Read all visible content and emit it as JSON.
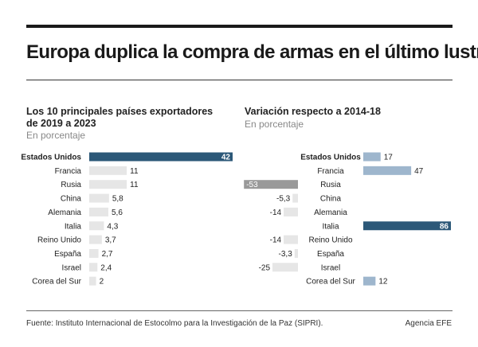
{
  "title": "Europa duplica la compra de armas en el último lustro",
  "left": {
    "subtitle_line1": "Los 10 principales países exportadores",
    "subtitle_line2": "de 2019 a 2023",
    "unit": "En porcentaje"
  },
  "right": {
    "subtitle": "Variación respecto a 2014-18",
    "unit": "En porcentaje"
  },
  "footer": {
    "source": "Fuente: Instituto Internacional de Estocolmo para la Investigación de la Paz (SIPRI).",
    "agency": "Agencia EFE"
  },
  "colors": {
    "highlight": "#2c5878",
    "light_bar": "#e6e6e6",
    "positive": "#9eb6cd",
    "negative_light": "#e6e6e6",
    "negative_dark": "#999999"
  },
  "chart_data": [
    {
      "type": "bar",
      "orientation": "horizontal",
      "categories": [
        "Estados Unidos",
        "Francia",
        "Rusia",
        "China",
        "Alemania",
        "Italia",
        "Reino Unido",
        "España",
        "Israel",
        "Corea del Sur"
      ],
      "values": [
        42,
        11,
        11,
        5.8,
        5.6,
        4.3,
        3.7,
        2.7,
        2.4,
        2
      ],
      "labels": [
        "42",
        "11",
        "11",
        "5,8",
        "5,6",
        "4,3",
        "3,7",
        "2,7",
        "2,4",
        "2"
      ],
      "highlight": "Estados Unidos"
    },
    {
      "type": "bar",
      "orientation": "horizontal",
      "categories": [
        "Estados Unidos",
        "Francia",
        "Rusia",
        "China",
        "Alemania",
        "Italia",
        "Reino Unido",
        "España",
        "Israel",
        "Corea del Sur"
      ],
      "values": [
        17,
        47,
        -53,
        -5.3,
        -14,
        86,
        -14,
        -3.3,
        -25,
        12
      ],
      "labels": [
        "17",
        "47",
        "-53",
        "-5,3",
        "-14",
        "86",
        "-14",
        "-3,3",
        "-25",
        "12"
      ],
      "highlight": "Italia"
    }
  ]
}
